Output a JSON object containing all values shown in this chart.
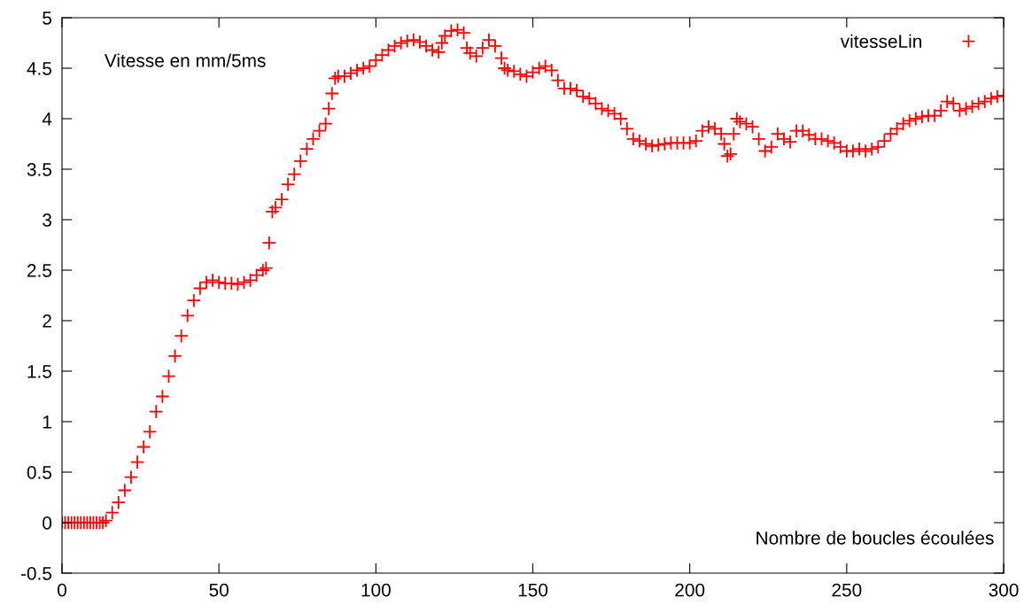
{
  "chart_data": {
    "type": "scatter",
    "xlabel": "Nombre de boucles écoulées",
    "ylabel": "Vitesse en mm/5ms",
    "x": [
      0,
      1,
      2,
      3,
      4,
      5,
      6,
      7,
      8,
      9,
      10,
      11,
      12,
      13,
      14,
      16,
      18,
      20,
      22,
      24,
      26,
      28,
      30,
      32,
      34,
      36,
      38,
      40,
      42,
      44,
      46,
      48,
      50,
      52,
      54,
      56,
      58,
      60,
      62,
      64,
      65,
      66,
      67,
      68,
      70,
      72,
      74,
      76,
      78,
      80,
      82,
      84,
      85,
      86,
      87,
      88,
      90,
      92,
      94,
      96,
      98,
      100,
      102,
      104,
      106,
      108,
      110,
      112,
      114,
      116,
      118,
      120,
      121,
      122,
      124,
      126,
      128,
      129,
      130,
      132,
      134,
      136,
      138,
      140,
      141,
      142,
      144,
      146,
      148,
      150,
      152,
      154,
      156,
      158,
      160,
      162,
      164,
      166,
      168,
      170,
      172,
      174,
      176,
      178,
      180,
      182,
      184,
      186,
      188,
      190,
      192,
      194,
      196,
      198,
      200,
      202,
      204,
      206,
      208,
      210,
      211,
      212,
      213,
      214,
      215,
      216,
      218,
      220,
      222,
      224,
      226,
      228,
      230,
      232,
      234,
      236,
      238,
      240,
      242,
      244,
      246,
      248,
      250,
      252,
      254,
      256,
      258,
      260,
      262,
      264,
      266,
      268,
      270,
      272,
      274,
      276,
      278,
      280,
      282,
      284,
      286,
      288,
      290,
      292,
      294,
      296,
      298,
      300
    ],
    "series": [
      {
        "name": "vitesseLin",
        "color": "#ff0000",
        "values": [
          0,
          0,
          0,
          0,
          0,
          0,
          0,
          0,
          0,
          0,
          0,
          0,
          0,
          0,
          0.02,
          0.1,
          0.2,
          0.32,
          0.45,
          0.6,
          0.75,
          0.9,
          1.1,
          1.25,
          1.45,
          1.65,
          1.85,
          2.05,
          2.2,
          2.32,
          2.38,
          2.4,
          2.38,
          2.37,
          2.37,
          2.36,
          2.38,
          2.4,
          2.45,
          2.5,
          2.52,
          2.77,
          3.08,
          3.12,
          3.2,
          3.35,
          3.45,
          3.58,
          3.7,
          3.8,
          3.88,
          3.95,
          4.1,
          4.25,
          4.4,
          4.42,
          4.42,
          4.45,
          4.48,
          4.5,
          4.52,
          4.58,
          4.63,
          4.68,
          4.72,
          4.75,
          4.77,
          4.78,
          4.76,
          4.72,
          4.68,
          4.66,
          4.75,
          4.82,
          4.87,
          4.88,
          4.85,
          4.7,
          4.65,
          4.62,
          4.7,
          4.78,
          4.72,
          4.6,
          4.5,
          4.48,
          4.47,
          4.44,
          4.42,
          4.46,
          4.5,
          4.52,
          4.48,
          4.38,
          4.3,
          4.3,
          4.28,
          4.22,
          4.2,
          4.15,
          4.1,
          4.08,
          4.05,
          4.0,
          3.9,
          3.8,
          3.78,
          3.75,
          3.73,
          3.74,
          3.75,
          3.76,
          3.76,
          3.76,
          3.76,
          3.78,
          3.88,
          3.92,
          3.9,
          3.85,
          3.75,
          3.63,
          3.65,
          3.85,
          4.0,
          3.97,
          3.95,
          3.92,
          3.8,
          3.68,
          3.72,
          3.85,
          3.8,
          3.77,
          3.88,
          3.88,
          3.84,
          3.8,
          3.8,
          3.78,
          3.76,
          3.72,
          3.68,
          3.68,
          3.7,
          3.68,
          3.7,
          3.72,
          3.78,
          3.85,
          3.9,
          3.95,
          3.98,
          4.0,
          4.02,
          4.03,
          4.03,
          4.08,
          4.17,
          4.15,
          4.08,
          4.1,
          4.12,
          4.15,
          4.17,
          4.2,
          4.22,
          4.23
        ]
      }
    ],
    "xlim": [
      0,
      300
    ],
    "ylim": [
      -0.5,
      5
    ],
    "xticks": [
      0,
      50,
      100,
      150,
      200,
      250,
      300
    ],
    "yticks": [
      -0.5,
      0,
      0.5,
      1,
      1.5,
      2,
      2.5,
      3,
      3.5,
      4,
      4.5,
      5
    ],
    "marker": "cross",
    "grid": false,
    "legend": "top right"
  }
}
